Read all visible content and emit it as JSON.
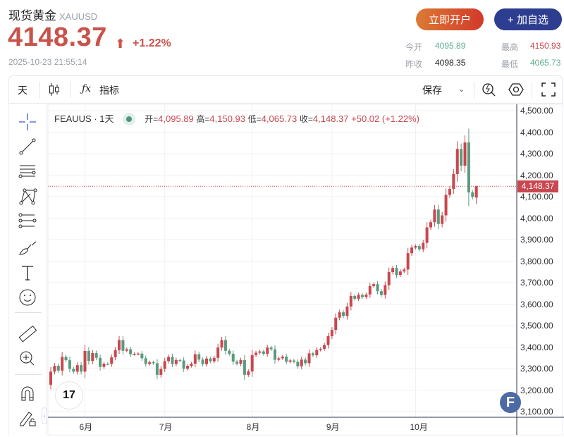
{
  "header": {
    "title": "现货黄金",
    "symbol": "XAUUSD",
    "price": "4148.37",
    "change_pct": "+1.22%",
    "direction": "up",
    "timestamp": "2025-10-23 21:55:14",
    "open_account_label": "立即开户",
    "add_watch_label": "+ 加自选",
    "stats": {
      "open_label": "今开",
      "open": "4095.89",
      "prev_close_label": "昨收",
      "prev_close": "4098.35",
      "high_label": "最高",
      "high": "4150.93",
      "low_label": "最低",
      "low": "4065.73"
    }
  },
  "toolbar": {
    "interval": "天",
    "candle_icon": "candlestick-icon",
    "indicator_label": "指标",
    "save_label": "保存"
  },
  "sidebar": [
    "crosshair-icon",
    "trend-line-icon",
    "horizontal-lines-icon",
    "pattern-icon",
    "parallel-channel-icon",
    "brush-icon",
    "text-icon",
    "emoji-icon",
    "ruler-icon",
    "zoom-in-icon",
    "magnet-icon",
    "lock-drawing-icon"
  ],
  "legend": {
    "name": "FEAUUS · 1天",
    "open_key": "开=",
    "open": "4,095.89",
    "high_key": "高=",
    "high": "4,150.93",
    "low_key": "低=",
    "low": "4,065.73",
    "close_key": "收=",
    "close": "4,148.37",
    "change": "+50.02 (+1.22%)"
  },
  "colors": {
    "up": "#c9474f",
    "down": "#5a9a7c",
    "price_line": "#c9474f"
  },
  "chart_data": {
    "type": "candlestick",
    "ylim": [
      3100,
      4500
    ],
    "y_ticks": [
      "4,500.00",
      "4,400.00",
      "4,300.00",
      "4,200.00",
      "4,100.00",
      "4,000.00",
      "3,900.00",
      "3,800.00",
      "3,700.00",
      "3,600.00",
      "3,500.00",
      "3,400.00",
      "3,300.00",
      "3,200.00",
      "3,100.00"
    ],
    "x_ticks": [
      {
        "label": "6月",
        "index": 9
      },
      {
        "label": "7月",
        "index": 30
      },
      {
        "label": "8月",
        "index": 53
      },
      {
        "label": "9月",
        "index": 74
      },
      {
        "label": "10月",
        "index": 96
      }
    ],
    "current_price": 4148.37,
    "current_price_label": "4,148.37",
    "first_open": 3225,
    "closes": [
      3286,
      3313,
      3291,
      3355,
      3339,
      3299,
      3286,
      3316,
      3286,
      3382,
      3336,
      3372,
      3350,
      3308,
      3323,
      3322,
      3353,
      3386,
      3433,
      3383,
      3390,
      3367,
      3369,
      3370,
      3348,
      3322,
      3330,
      3325,
      3271,
      3299,
      3335,
      3355,
      3322,
      3340,
      3338,
      3300,
      3313,
      3323,
      3367,
      3342,
      3321,
      3347,
      3334,
      3350,
      3398,
      3433,
      3383,
      3369,
      3333,
      3323,
      3340,
      3271,
      3287,
      3363,
      3374,
      3380,
      3369,
      3398,
      3390,
      3341,
      3348,
      3356,
      3332,
      3338,
      3332,
      3311,
      3342,
      3325,
      3371,
      3362,
      3387,
      3392,
      3410,
      3451,
      3480,
      3537,
      3562,
      3545,
      3589,
      3638,
      3625,
      3643,
      3633,
      3645,
      3684,
      3693,
      3660,
      3643,
      3688,
      3749,
      3768,
      3736,
      3752,
      3761,
      3837,
      3863,
      3870,
      3855,
      3885,
      3957,
      3981,
      4040,
      3973,
      4013,
      4108,
      4136,
      4205,
      4322,
      4244,
      4352,
      4120,
      4098.35,
      4148.37
    ],
    "last_candle": {
      "open": 4095.89,
      "high": 4150.93,
      "low": 4065.73,
      "close": 4148.37
    }
  }
}
